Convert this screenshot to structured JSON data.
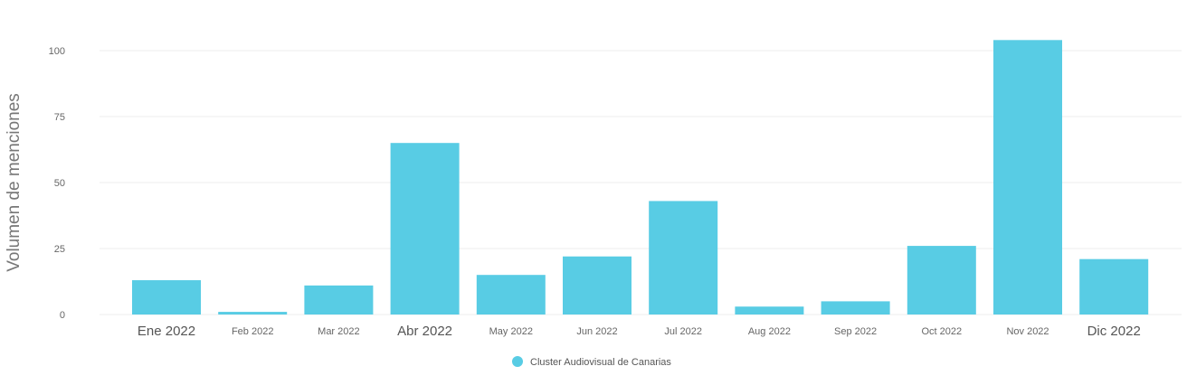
{
  "chart_data": {
    "type": "bar",
    "title": "",
    "xlabel": "",
    "ylabel": "Volumen de menciones",
    "categories": [
      "Ene 2022",
      "Feb 2022",
      "Mar 2022",
      "Abr 2022",
      "May 2022",
      "Jun 2022",
      "Jul 2022",
      "Aug 2022",
      "Sep 2022",
      "Oct 2022",
      "Nov 2022",
      "Dic 2022"
    ],
    "series": [
      {
        "name": "Cluster Audiovisual de Canarias",
        "values": [
          13,
          1,
          11,
          65,
          15,
          22,
          43,
          3,
          5,
          26,
          104,
          21
        ],
        "color": "#58cce4"
      }
    ],
    "yticks": [
      "0",
      "25",
      "50",
      "75",
      "100"
    ],
    "ylim": [
      0,
      110
    ],
    "grid": true,
    "legend_position": "bottom-center"
  }
}
